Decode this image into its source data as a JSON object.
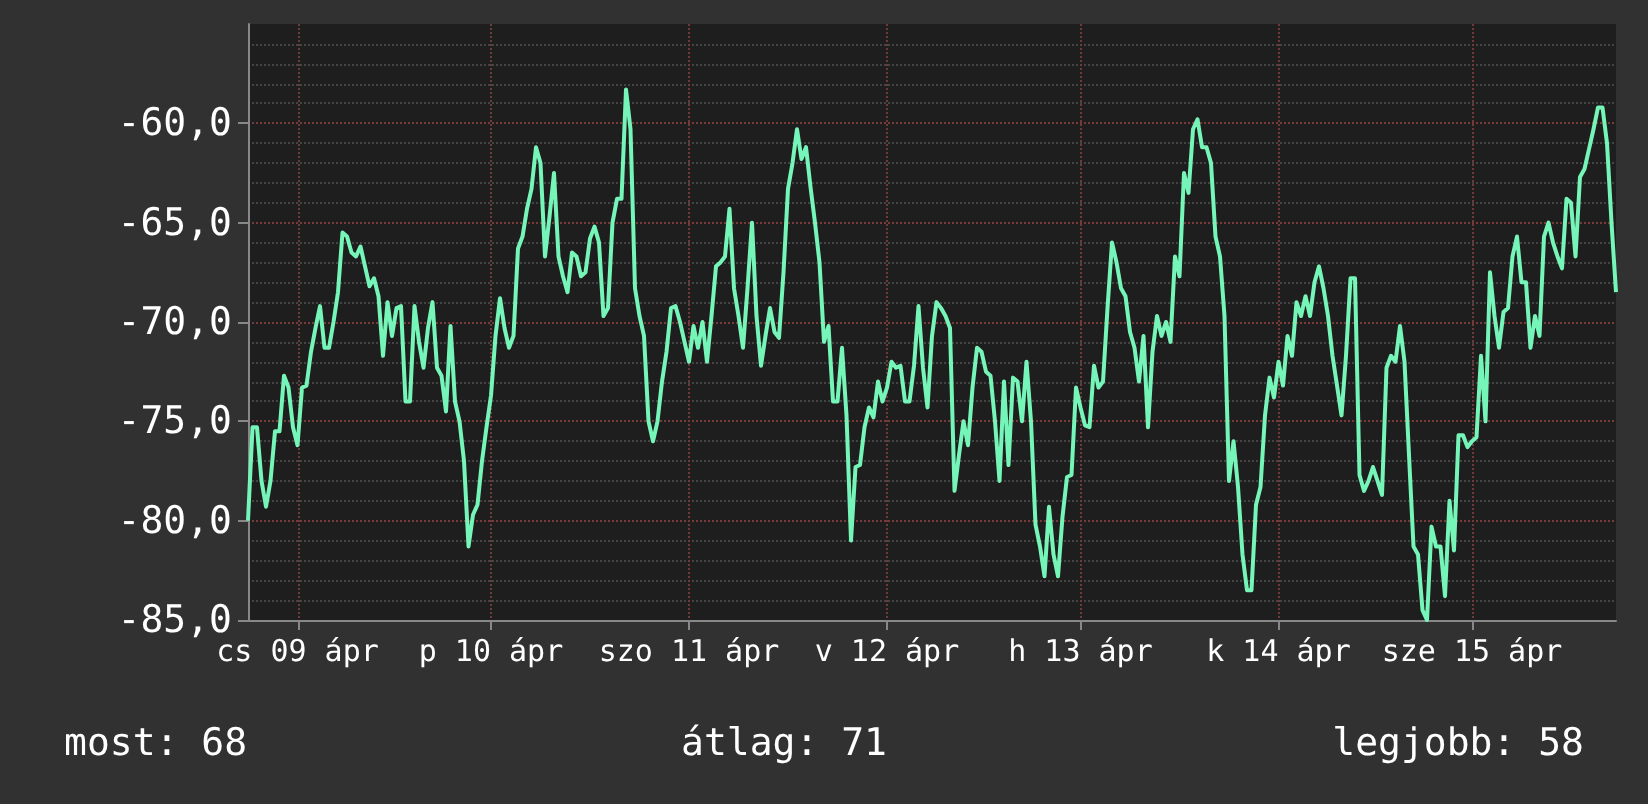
{
  "chart_data": {
    "type": "line",
    "categories": [
      null,
      null,
      null,
      null,
      null,
      null,
      null,
      null,
      null,
      null,
      null,
      "cs 09 ápr",
      null,
      null,
      null,
      null,
      null,
      null,
      null,
      null,
      null,
      null,
      null,
      null,
      null,
      null,
      null,
      null,
      null,
      null,
      null,
      null,
      null,
      null,
      null,
      null,
      null,
      null,
      null,
      null,
      null,
      null,
      null,
      null,
      null,
      null,
      null,
      null,
      null,
      null,
      null,
      null,
      null,
      null,
      "p 10 ápr",
      null,
      null,
      null,
      null,
      null,
      null,
      null,
      null,
      null,
      null,
      null,
      null,
      null,
      null,
      null,
      null,
      null,
      null,
      null,
      null,
      null,
      null,
      null,
      null,
      null,
      null,
      null,
      null,
      null,
      null,
      null,
      null,
      null,
      null,
      null,
      null,
      null,
      null,
      null,
      null,
      null,
      null,
      null,
      "szo 11 ápr",
      null,
      null,
      null,
      null,
      null,
      null,
      null,
      null,
      null,
      null,
      null,
      null,
      null,
      null,
      null,
      null,
      null,
      null,
      null,
      null,
      null,
      null,
      null,
      null,
      null,
      null,
      null,
      null,
      null,
      null,
      null,
      null,
      null,
      null,
      null,
      null,
      null,
      null,
      null,
      null,
      null,
      null,
      null,
      "v 12 ápr",
      null,
      null,
      null,
      null,
      null,
      null,
      null,
      null,
      null,
      null,
      null,
      null,
      null,
      null,
      null,
      null,
      null,
      null,
      null,
      null,
      null,
      null,
      null,
      null,
      null,
      null,
      null,
      null,
      null,
      null,
      null,
      null,
      null,
      null,
      null,
      null,
      null,
      null,
      null,
      null,
      null,
      null,
      "h 13 ápr",
      null,
      null,
      null,
      null,
      null,
      null,
      null,
      null,
      null,
      null,
      null,
      null,
      null,
      null,
      null,
      null,
      null,
      null,
      null,
      null,
      null,
      null,
      null,
      null,
      null,
      null,
      null,
      null,
      null,
      null,
      null,
      null,
      null,
      null,
      null,
      null,
      null,
      null,
      null,
      null,
      null,
      null,
      null,
      "k 14 ápr",
      null,
      null,
      null,
      null,
      null,
      null,
      null,
      null,
      null,
      null,
      null,
      null,
      null,
      null,
      null,
      null,
      null,
      null,
      null,
      null,
      null,
      null,
      null,
      null,
      null,
      null,
      null,
      null,
      null,
      null,
      null,
      null,
      null,
      null,
      null,
      null,
      null,
      null,
      null,
      null,
      null,
      null,
      "sze 15 ápr",
      null,
      null,
      null,
      null,
      null,
      null,
      null,
      null,
      null,
      null,
      null,
      null,
      null,
      null,
      null,
      null,
      null,
      null,
      null,
      null,
      null,
      null,
      null,
      null,
      null,
      null,
      null,
      null,
      null,
      null,
      null,
      null
    ],
    "series": [
      {
        "color": "#76f5b8",
        "values": [
          -80,
          -75.3,
          -75.3,
          -78,
          -79.3,
          -78,
          -75.5,
          -75.5,
          -72.7,
          -73.3,
          -75.3,
          -76.2,
          -73.3,
          -73.2,
          -71.5,
          -70.3,
          -69.2,
          -71.3,
          -71.3,
          -70,
          -68.5,
          -65.5,
          -65.7,
          -66.5,
          -66.7,
          -66.2,
          -67.2,
          -68.2,
          -67.8,
          -68.7,
          -71.7,
          -69,
          -70.7,
          -69.3,
          -69.2,
          -74,
          -74,
          -69.2,
          -71,
          -72.3,
          -70.3,
          -69,
          -72.3,
          -72.7,
          -74.5,
          -70.2,
          -74,
          -75,
          -77,
          -81.3,
          -79.7,
          -79.2,
          -77,
          -75.3,
          -73.7,
          -70.7,
          -68.8,
          -70.3,
          -71.3,
          -70.7,
          -66.3,
          -65.7,
          -64.3,
          -63.3,
          -61.2,
          -62,
          -66.7,
          -64.7,
          -62.5,
          -66.7,
          -67.7,
          -68.5,
          -66.5,
          -66.7,
          -67.7,
          -67.5,
          -65.8,
          -65.2,
          -66,
          -69.7,
          -69.3,
          -65,
          -63.8,
          -63.8,
          -58.3,
          -60.3,
          -68.3,
          -69.7,
          -70.7,
          -75,
          -76,
          -75,
          -73,
          -71.5,
          -69.3,
          -69.2,
          -70,
          -71,
          -72,
          -70.2,
          -71.3,
          -70,
          -72,
          -69.7,
          -67.2,
          -67,
          -66.7,
          -64.3,
          -68.3,
          -69.7,
          -71.3,
          -68.3,
          -65,
          -69.7,
          -72.2,
          -70.7,
          -69.3,
          -70.5,
          -70.8,
          -67.5,
          -63.3,
          -62,
          -60.3,
          -61.8,
          -61.2,
          -63.2,
          -65,
          -67,
          -71,
          -70.2,
          -74,
          -74,
          -71.3,
          -74.7,
          -81,
          -77.3,
          -77.2,
          -75.3,
          -74.3,
          -74.8,
          -73,
          -74,
          -73.3,
          -72,
          -72.3,
          -72.2,
          -74,
          -74,
          -72.2,
          -69.2,
          -72.3,
          -74.3,
          -70.7,
          -69,
          -69.3,
          -69.7,
          -70.3,
          -78.5,
          -76.7,
          -75,
          -76.2,
          -73.3,
          -71.3,
          -71.5,
          -72.5,
          -72.7,
          -75,
          -78,
          -73,
          -77.2,
          -72.8,
          -73,
          -75,
          -72,
          -75,
          -80.2,
          -81.3,
          -82.8,
          -79.3,
          -81.7,
          -82.8,
          -79.8,
          -77.8,
          -77.7,
          -73.3,
          -74.3,
          -75.2,
          -75.3,
          -72.2,
          -73.3,
          -73,
          -69.3,
          -66,
          -67,
          -68.3,
          -68.7,
          -70.5,
          -71.3,
          -73,
          -70.7,
          -75.3,
          -71.5,
          -69.7,
          -70.7,
          -70,
          -71,
          -66.7,
          -67.7,
          -62.5,
          -63.5,
          -60.3,
          -59.8,
          -61.2,
          -61.2,
          -62,
          -65.7,
          -66.7,
          -69.7,
          -78,
          -76,
          -78.3,
          -81.7,
          -83.5,
          -83.5,
          -79.2,
          -78.3,
          -74.7,
          -72.8,
          -73.8,
          -72,
          -73.2,
          -70.7,
          -71.7,
          -69,
          -69.7,
          -68.7,
          -69.7,
          -68,
          -67.2,
          -68.3,
          -69.7,
          -71.7,
          -73.2,
          -74.7,
          -71.7,
          -67.8,
          -67.8,
          -77.7,
          -78.5,
          -78,
          -77.3,
          -78,
          -78.7,
          -72.3,
          -71.7,
          -72,
          -70.2,
          -72,
          -76.7,
          -81.3,
          -81.7,
          -84.5,
          -85,
          -80.3,
          -81.3,
          -81.3,
          -83.8,
          -79,
          -81.5,
          -75.7,
          -75.7,
          -76.3,
          -76,
          -75.8,
          -71.7,
          -75,
          -67.5,
          -69.7,
          -71.3,
          -69.5,
          -69.3,
          -66.7,
          -65.7,
          -68,
          -68,
          -71.3,
          -69.7,
          -70.7,
          -65.7,
          -65,
          -66,
          -66.7,
          -67.3,
          -63.8,
          -64,
          -66.7,
          -62.7,
          -62.3,
          -61.3,
          -60.3,
          -59.2,
          -59.2,
          -61,
          -65,
          -68.5
        ]
      }
    ],
    "ylim": [
      -85,
      -55
    ],
    "yticks": [
      {
        "value": -85,
        "label": "-85,0"
      },
      {
        "value": -80,
        "label": "-80,0"
      },
      {
        "value": -75,
        "label": "-75,0"
      },
      {
        "value": -70,
        "label": "-70,0"
      },
      {
        "value": -65,
        "label": "-65,0"
      },
      {
        "value": -60,
        "label": "-60,0"
      }
    ],
    "grid": true,
    "annotations": [
      "most: 68",
      "átlag: 71",
      "legjobb: 58"
    ]
  }
}
